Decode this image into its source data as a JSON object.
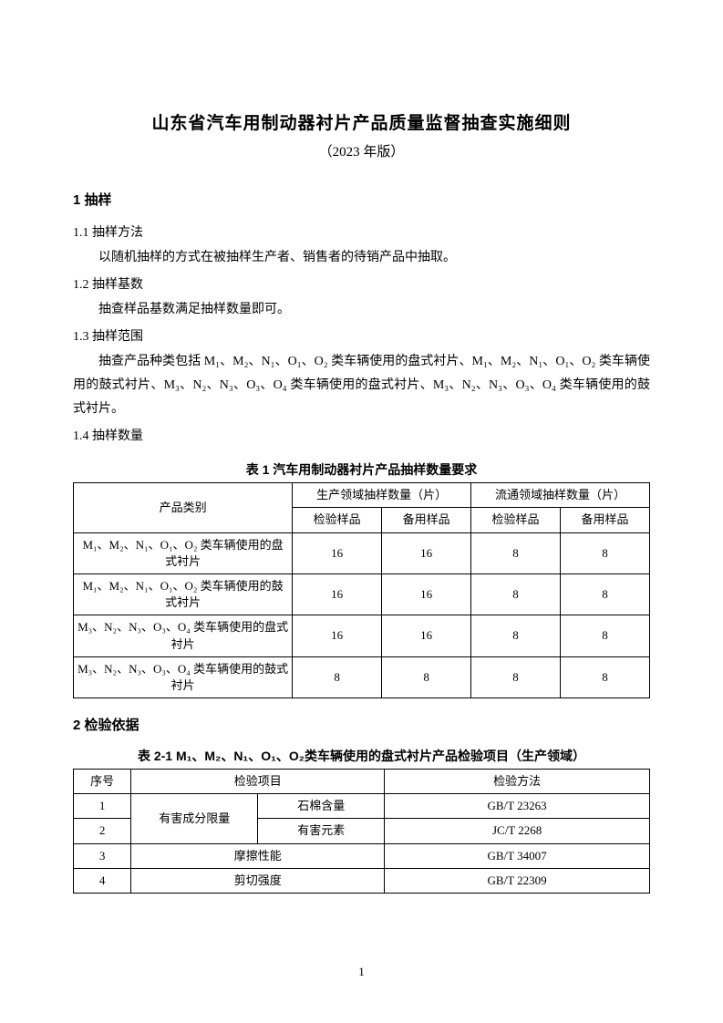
{
  "title": "山东省汽车用制动器衬片产品质量监督抽查实施细则",
  "subtitle": "（2023 年版）",
  "sec1": {
    "heading": "1 抽样"
  },
  "s11": {
    "label": "1.1 抽样方法",
    "text": "以随机抽样的方式在被抽样生产者、销售者的待销产品中抽取。"
  },
  "s12": {
    "label": "1.2 抽样基数",
    "text": "抽查样品基数满足抽样数量即可。"
  },
  "s13": {
    "label": "1.3 抽样范围",
    "text": "抽查产品种类包括 M₁、M₂、N₁、O₁、O₂ 类车辆使用的盘式衬片、M₁、M₂、N₁、O₁、O₂ 类车辆使用的鼓式衬片、M₃、N₂、N₃、O₃、O₄ 类车辆使用的盘式衬片、M₃、N₂、N₃、O₃、O₄ 类车辆使用的鼓式衬片。"
  },
  "s14": {
    "label": "1.4 抽样数量"
  },
  "table1": {
    "caption": "表 1 汽车用制动器衬片产品抽样数量要求",
    "headers": {
      "product": "产品类别",
      "prod_domain": "生产领域抽样数量（片）",
      "circ_domain": "流通领域抽样数量（片）",
      "inspect": "检验样品",
      "backup": "备用样品"
    },
    "rows": [
      {
        "product": "M₁、M₂、N₁、O₁、O₂ 类车辆使用的盘式衬片",
        "v": [
          "16",
          "16",
          "8",
          "8"
        ]
      },
      {
        "product": "M₁、M₂、N₁、O₁、O₂ 类车辆使用的鼓式衬片",
        "v": [
          "16",
          "16",
          "8",
          "8"
        ]
      },
      {
        "product": "M₃、N₂、N₃、O₃、O₄ 类车辆使用的盘式衬片",
        "v": [
          "16",
          "16",
          "8",
          "8"
        ]
      },
      {
        "product": "M₃、N₂、N₃、O₃、O₄ 类车辆使用的鼓式衬片",
        "v": [
          "8",
          "8",
          "8",
          "8"
        ]
      }
    ]
  },
  "sec2": {
    "heading": "2 检验依据"
  },
  "table2": {
    "caption": "表 2-1 M₁、M₂、N₁、O₁、O₂类车辆使用的盘式衬片产品检验项目（生产领域）",
    "headers": {
      "seq": "序号",
      "item": "检验项目",
      "method": "检验方法"
    },
    "merged": "有害成分限量",
    "rows": [
      {
        "seq": "1",
        "sub": "石棉含量",
        "method": "GB/T 23263"
      },
      {
        "seq": "2",
        "sub": "有害元素",
        "method": "JC/T 2268"
      },
      {
        "seq": "3",
        "item": "摩擦性能",
        "method": "GB/T 34007"
      },
      {
        "seq": "4",
        "item": "剪切强度",
        "method": "GB/T 22309"
      }
    ]
  },
  "page": "1"
}
